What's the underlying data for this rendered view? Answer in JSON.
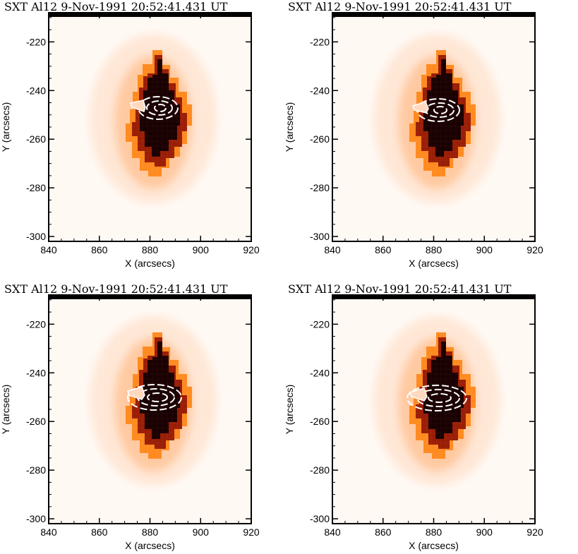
{
  "figure": {
    "panels": [
      {
        "title": "SXT Al12     9-Nov-1991  20:52:41.431  UT",
        "xlabel": "X (arcsecs)",
        "ylabel": "Y (arcsecs)",
        "xticks": [
          "840",
          "860",
          "880",
          "900",
          "920"
        ],
        "yticks": [
          "-220",
          "-240",
          "-260",
          "-280",
          "-300"
        ]
      },
      {
        "title": "SXT Al12     9-Nov-1991  20:52:41.431  UT",
        "xlabel": "X (arcsecs)",
        "ylabel": "Y (arcsecs)",
        "xticks": [
          "840",
          "860",
          "880",
          "900",
          "920"
        ],
        "yticks": [
          "-220",
          "-240",
          "-260",
          "-280",
          "-300"
        ]
      },
      {
        "title": "SXT Al12     9-Nov-1991  20:52:41.431  UT",
        "xlabel": "X (arcsecs)",
        "ylabel": "Y (arcsecs)",
        "xticks": [
          "840",
          "860",
          "880",
          "900",
          "920"
        ],
        "yticks": [
          "-220",
          "-240",
          "-260",
          "-280",
          "-300"
        ]
      },
      {
        "title": "SXT Al12     9-Nov-1991  20:52:41.431  UT",
        "xlabel": "X (arcsecs)",
        "ylabel": "Y (arcsecs)",
        "xticks": [
          "840",
          "860",
          "880",
          "900",
          "920"
        ],
        "yticks": [
          "-220",
          "-240",
          "-260",
          "-280",
          "-300"
        ]
      }
    ],
    "colormap": "red-temperature (white to black)",
    "contour_color": "#ffffff",
    "xlim": [
      840,
      920
    ],
    "ylim": [
      -302,
      -208
    ]
  }
}
